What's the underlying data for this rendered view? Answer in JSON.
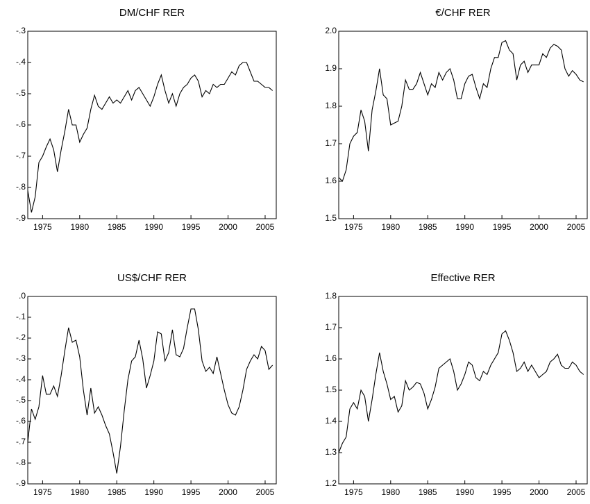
{
  "chart_data": [
    {
      "type": "line",
      "title": "DM/CHF RER",
      "color": "#000000",
      "x": [
        1973,
        1973.5,
        1974,
        1974.5,
        1975,
        1975.5,
        1976,
        1976.5,
        1977,
        1977.5,
        1978,
        1978.5,
        1979,
        1979.5,
        1980,
        1980.5,
        1981,
        1981.5,
        1982,
        1982.5,
        1983,
        1983.5,
        1984,
        1984.5,
        1985,
        1985.5,
        1986,
        1986.5,
        1987,
        1987.5,
        1988,
        1988.5,
        1989,
        1989.5,
        1990,
        1990.5,
        1991,
        1991.5,
        1992,
        1992.5,
        1993,
        1993.5,
        1994,
        1994.5,
        1995,
        1995.5,
        1996,
        1996.5,
        1997,
        1997.5,
        1998,
        1998.5,
        1999,
        1999.5,
        2000,
        2000.5,
        2001,
        2001.5,
        2002,
        2002.5,
        2003,
        2003.5,
        2004,
        2004.5,
        2005,
        2005.5,
        2006
      ],
      "values": [
        -0.81,
        -0.88,
        -0.83,
        -0.72,
        -0.7,
        -0.67,
        -0.645,
        -0.68,
        -0.75,
        -0.68,
        -0.62,
        -0.55,
        -0.6,
        -0.6,
        -0.655,
        -0.63,
        -0.61,
        -0.55,
        -0.505,
        -0.54,
        -0.55,
        -0.53,
        -0.51,
        -0.53,
        -0.52,
        -0.53,
        -0.51,
        -0.49,
        -0.52,
        -0.49,
        -0.48,
        -0.5,
        -0.52,
        -0.54,
        -0.51,
        -0.47,
        -0.44,
        -0.49,
        -0.53,
        -0.5,
        -0.54,
        -0.5,
        -0.48,
        -0.47,
        -0.45,
        -0.44,
        -0.46,
        -0.51,
        -0.49,
        -0.5,
        -0.47,
        -0.48,
        -0.47,
        -0.47,
        -0.45,
        -0.43,
        -0.44,
        -0.41,
        -0.4,
        -0.4,
        -0.43,
        -0.46,
        -0.46,
        -0.47,
        -0.48,
        -0.48,
        -0.49
      ],
      "xlim": [
        1973,
        2006.5
      ],
      "xticks": [
        1975,
        1980,
        1985,
        1990,
        1995,
        2000,
        2005
      ],
      "ylim": [
        -0.9,
        -0.3
      ],
      "yticks": [
        {
          "value": -0.9,
          "label": "-.9"
        },
        {
          "value": -0.8,
          "label": "-.8"
        },
        {
          "value": -0.7,
          "label": "-.7"
        },
        {
          "value": -0.6,
          "label": "-.6"
        },
        {
          "value": -0.5,
          "label": "-.5"
        },
        {
          "value": -0.4,
          "label": "-.4"
        },
        {
          "value": -0.3,
          "label": "-.3"
        }
      ]
    },
    {
      "type": "line",
      "title": "€/CHF RER",
      "color": "#000000",
      "x": [
        1973,
        1973.5,
        1974,
        1974.5,
        1975,
        1975.5,
        1976,
        1976.5,
        1977,
        1977.5,
        1978,
        1978.5,
        1979,
        1979.5,
        1980,
        1980.5,
        1981,
        1981.5,
        1982,
        1982.5,
        1983,
        1983.5,
        1984,
        1984.5,
        1985,
        1985.5,
        1986,
        1986.5,
        1987,
        1987.5,
        1988,
        1988.5,
        1989,
        1989.5,
        1990,
        1990.5,
        1991,
        1991.5,
        1992,
        1992.5,
        1993,
        1993.5,
        1994,
        1994.5,
        1995,
        1995.5,
        1996,
        1996.5,
        1997,
        1997.5,
        1998,
        1998.5,
        1999,
        1999.5,
        2000,
        2000.5,
        2001,
        2001.5,
        2002,
        2002.5,
        2003,
        2003.5,
        2004,
        2004.5,
        2005,
        2005.5,
        2006
      ],
      "values": [
        1.61,
        1.6,
        1.63,
        1.7,
        1.72,
        1.73,
        1.79,
        1.76,
        1.68,
        1.79,
        1.84,
        1.9,
        1.83,
        1.82,
        1.75,
        1.755,
        1.76,
        1.8,
        1.87,
        1.845,
        1.845,
        1.86,
        1.89,
        1.86,
        1.83,
        1.86,
        1.85,
        1.89,
        1.87,
        1.89,
        1.9,
        1.87,
        1.82,
        1.82,
        1.86,
        1.88,
        1.885,
        1.85,
        1.82,
        1.86,
        1.85,
        1.9,
        1.93,
        1.93,
        1.97,
        1.975,
        1.95,
        1.94,
        1.87,
        1.91,
        1.92,
        1.89,
        1.91,
        1.91,
        1.91,
        1.94,
        1.93,
        1.955,
        1.965,
        1.96,
        1.95,
        1.9,
        1.88,
        1.895,
        1.885,
        1.87,
        1.865
      ],
      "xlim": [
        1973,
        2006.5
      ],
      "xticks": [
        1975,
        1980,
        1985,
        1990,
        1995,
        2000,
        2005
      ],
      "ylim": [
        1.5,
        2.0
      ],
      "yticks": [
        1.5,
        1.6,
        1.7,
        1.8,
        1.9,
        {
          "value": 2.0,
          "label": "2.0"
        }
      ]
    },
    {
      "type": "line",
      "title": "US$/CHF RER",
      "color": "#000000",
      "x": [
        1973,
        1973.5,
        1974,
        1974.5,
        1975,
        1975.5,
        1976,
        1976.5,
        1977,
        1977.5,
        1978,
        1978.5,
        1979,
        1979.5,
        1980,
        1980.5,
        1981,
        1981.5,
        1982,
        1982.5,
        1983,
        1983.5,
        1984,
        1984.5,
        1985,
        1985.5,
        1986,
        1986.5,
        1987,
        1987.5,
        1988,
        1988.5,
        1989,
        1989.5,
        1990,
        1990.5,
        1991,
        1991.5,
        1992,
        1992.5,
        1993,
        1993.5,
        1994,
        1994.5,
        1995,
        1995.5,
        1996,
        1996.5,
        1997,
        1997.5,
        1998,
        1998.5,
        1999,
        1999.5,
        2000,
        2000.5,
        2001,
        2001.5,
        2002,
        2002.5,
        2003,
        2003.5,
        2004,
        2004.5,
        2005,
        2005.5,
        2006
      ],
      "values": [
        -0.7,
        -0.54,
        -0.59,
        -0.53,
        -0.38,
        -0.47,
        -0.47,
        -0.43,
        -0.48,
        -0.38,
        -0.26,
        -0.15,
        -0.22,
        -0.21,
        -0.29,
        -0.45,
        -0.57,
        -0.44,
        -0.56,
        -0.53,
        -0.57,
        -0.62,
        -0.66,
        -0.75,
        -0.85,
        -0.72,
        -0.55,
        -0.4,
        -0.31,
        -0.29,
        -0.21,
        -0.3,
        -0.44,
        -0.38,
        -0.31,
        -0.17,
        -0.18,
        -0.31,
        -0.27,
        -0.16,
        -0.28,
        -0.29,
        -0.25,
        -0.15,
        -0.06,
        -0.06,
        -0.16,
        -0.31,
        -0.36,
        -0.34,
        -0.37,
        -0.29,
        -0.37,
        -0.45,
        -0.52,
        -0.56,
        -0.57,
        -0.53,
        -0.45,
        -0.35,
        -0.31,
        -0.28,
        -0.3,
        -0.24,
        -0.26,
        -0.35,
        -0.33
      ],
      "xlim": [
        1973,
        2006.5
      ],
      "xticks": [
        1975,
        1980,
        1985,
        1990,
        1995,
        2000,
        2005
      ],
      "ylim": [
        -0.9,
        0
      ],
      "yticks": [
        {
          "value": -0.9,
          "label": "-.9"
        },
        {
          "value": -0.8,
          "label": "-.8"
        },
        {
          "value": -0.7,
          "label": "-.7"
        },
        {
          "value": -0.6,
          "label": "-.6"
        },
        {
          "value": -0.5,
          "label": "-.5"
        },
        {
          "value": -0.4,
          "label": "-.4"
        },
        {
          "value": -0.3,
          "label": "-.3"
        },
        {
          "value": -0.2,
          "label": "-.2"
        },
        {
          "value": -0.1,
          "label": "-.1"
        },
        {
          "value": 0,
          "label": ".0"
        }
      ]
    },
    {
      "type": "line",
      "title": "Effective RER",
      "color": "#000000",
      "x": [
        1973,
        1973.5,
        1974,
        1974.5,
        1975,
        1975.5,
        1976,
        1976.5,
        1977,
        1977.5,
        1978,
        1978.5,
        1979,
        1979.5,
        1980,
        1980.5,
        1981,
        1981.5,
        1982,
        1982.5,
        1983,
        1983.5,
        1984,
        1984.5,
        1985,
        1985.5,
        1986,
        1986.5,
        1987,
        1987.5,
        1988,
        1988.5,
        1989,
        1989.5,
        1990,
        1990.5,
        1991,
        1991.5,
        1992,
        1992.5,
        1993,
        1993.5,
        1994,
        1994.5,
        1995,
        1995.5,
        1996,
        1996.5,
        1997,
        1997.5,
        1998,
        1998.5,
        1999,
        1999.5,
        2000,
        2000.5,
        2001,
        2001.5,
        2002,
        2002.5,
        2003,
        2003.5,
        2004,
        2004.5,
        2005,
        2005.5,
        2006
      ],
      "values": [
        1.3,
        1.33,
        1.35,
        1.44,
        1.46,
        1.44,
        1.5,
        1.48,
        1.4,
        1.47,
        1.55,
        1.62,
        1.56,
        1.52,
        1.47,
        1.48,
        1.43,
        1.45,
        1.53,
        1.5,
        1.51,
        1.525,
        1.52,
        1.49,
        1.44,
        1.47,
        1.51,
        1.57,
        1.58,
        1.59,
        1.6,
        1.56,
        1.5,
        1.52,
        1.55,
        1.59,
        1.58,
        1.54,
        1.53,
        1.56,
        1.55,
        1.58,
        1.6,
        1.62,
        1.68,
        1.69,
        1.66,
        1.62,
        1.56,
        1.57,
        1.59,
        1.56,
        1.58,
        1.56,
        1.54,
        1.55,
        1.56,
        1.59,
        1.6,
        1.615,
        1.58,
        1.57,
        1.57,
        1.59,
        1.58,
        1.56,
        1.55
      ],
      "xlim": [
        1973,
        2006.5
      ],
      "xticks": [
        1975,
        1980,
        1985,
        1990,
        1995,
        2000,
        2005
      ],
      "ylim": [
        1.2,
        1.8
      ],
      "yticks": [
        1.2,
        1.3,
        1.4,
        1.5,
        1.6,
        1.7,
        1.8
      ]
    }
  ]
}
